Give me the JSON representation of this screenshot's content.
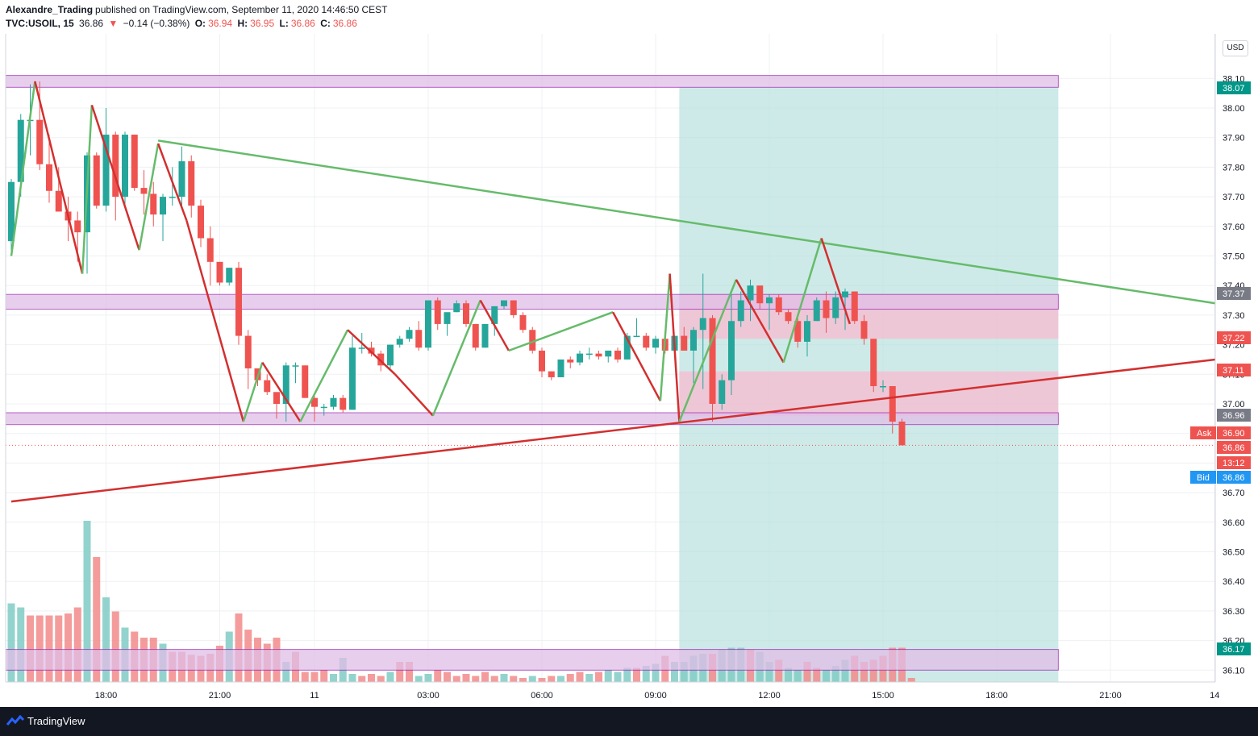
{
  "header": {
    "author": "Alexandre_Trading",
    "published_text": "published on TradingView.com, September 11, 2020 14:46:50 CEST",
    "symbol": "TVC:USOIL, 15",
    "last": "36.86",
    "change": "−0.14 (−0.38%)",
    "o_label": "O:",
    "o_value": "36.94",
    "h_label": "H:",
    "h_value": "36.95",
    "l_label": "L:",
    "l_value": "36.86",
    "c_label": "C:",
    "c_value": "36.86"
  },
  "currency": "USD",
  "footer": {
    "brand": "TradingView"
  },
  "colors": {
    "up": "#26a69a",
    "down": "#ef5350",
    "zone_fill": "#e1bee7",
    "zone_border": "#9c27b0",
    "target_fill": "#b2dfdb",
    "stop_fill": "#f8bbd0",
    "trend_green": "#66bb6a",
    "trend_red": "#d32f2f"
  },
  "chart_data": {
    "type": "candlestick",
    "interval": "15",
    "ylim": [
      36.0,
      38.25
    ],
    "y_ticks": [
      "38.10",
      "38.00",
      "37.90",
      "37.80",
      "37.70",
      "37.60",
      "37.50",
      "37.40",
      "37.30",
      "37.20",
      "37.10",
      "37.00",
      "36.90",
      "36.80",
      "36.70",
      "36.60",
      "36.50",
      "36.40",
      "36.30",
      "36.20",
      "36.10"
    ],
    "x_ticks": [
      {
        "label": "18:00",
        "t": 10
      },
      {
        "label": "21:00",
        "t": 22
      },
      {
        "label": "11",
        "t": 32
      },
      {
        "label": "03:00",
        "t": 44
      },
      {
        "label": "06:00",
        "t": 56
      },
      {
        "label": "09:00",
        "t": 68
      },
      {
        "label": "12:00",
        "t": 80
      },
      {
        "label": "15:00",
        "t": 92
      },
      {
        "label": "18:00",
        "t": 104
      },
      {
        "label": "21:00",
        "t": 116
      },
      {
        "label": "14",
        "t": 127
      }
    ],
    "candles": [
      [
        37.55,
        37.76,
        37.5,
        37.75
      ],
      [
        37.75,
        37.98,
        37.7,
        37.96
      ],
      [
        37.96,
        38.08,
        37.84,
        37.96
      ],
      [
        37.96,
        38.09,
        37.79,
        37.81
      ],
      [
        37.81,
        37.91,
        37.68,
        37.72
      ],
      [
        37.72,
        37.8,
        37.65,
        37.65
      ],
      [
        37.65,
        37.7,
        37.55,
        37.62
      ],
      [
        37.62,
        37.65,
        37.48,
        37.58
      ],
      [
        37.58,
        37.85,
        37.44,
        37.84
      ],
      [
        37.84,
        37.85,
        37.66,
        37.67
      ],
      [
        37.67,
        38.0,
        37.65,
        37.91
      ],
      [
        37.91,
        37.92,
        37.62,
        37.7
      ],
      [
        37.7,
        37.92,
        37.67,
        37.91
      ],
      [
        37.91,
        37.91,
        37.72,
        37.73
      ],
      [
        37.73,
        37.79,
        37.64,
        37.71
      ],
      [
        37.71,
        37.75,
        37.6,
        37.64
      ],
      [
        37.64,
        37.71,
        37.55,
        37.7
      ],
      [
        37.7,
        37.8,
        37.67,
        37.7
      ],
      [
        37.7,
        37.87,
        37.67,
        37.82
      ],
      [
        37.82,
        37.84,
        37.63,
        37.67
      ],
      [
        37.67,
        37.69,
        37.53,
        37.56
      ],
      [
        37.56,
        37.6,
        37.4,
        37.48
      ],
      [
        37.48,
        37.48,
        37.4,
        37.41
      ],
      [
        37.41,
        37.46,
        37.4,
        37.46
      ],
      [
        37.46,
        37.48,
        37.2,
        37.23
      ],
      [
        37.23,
        37.25,
        37.05,
        37.12
      ],
      [
        37.12,
        37.12,
        37.06,
        37.08
      ],
      [
        37.08,
        37.1,
        37.03,
        37.04
      ],
      [
        37.04,
        37.04,
        36.95,
        37.0
      ],
      [
        37.0,
        37.14,
        36.94,
        37.13
      ],
      [
        37.13,
        37.14,
        37.07,
        37.13
      ],
      [
        37.13,
        37.13,
        37.02,
        37.02
      ],
      [
        37.02,
        37.03,
        36.94,
        36.99
      ],
      [
        36.99,
        37.0,
        36.96,
        36.99
      ],
      [
        36.99,
        37.03,
        36.98,
        37.02
      ],
      [
        37.02,
        37.03,
        36.97,
        36.98
      ],
      [
        36.98,
        37.23,
        36.98,
        37.19
      ],
      [
        37.19,
        37.24,
        37.17,
        37.19
      ],
      [
        37.19,
        37.21,
        37.16,
        37.17
      ],
      [
        37.17,
        37.18,
        37.11,
        37.13
      ],
      [
        37.13,
        37.2,
        37.12,
        37.2
      ],
      [
        37.2,
        37.23,
        37.19,
        37.22
      ],
      [
        37.22,
        37.26,
        37.21,
        37.25
      ],
      [
        37.25,
        37.28,
        37.18,
        37.19
      ],
      [
        37.19,
        37.35,
        37.18,
        37.35
      ],
      [
        37.35,
        37.36,
        37.25,
        37.27
      ],
      [
        37.27,
        37.3,
        37.23,
        37.31
      ],
      [
        37.31,
        37.35,
        37.31,
        37.34
      ],
      [
        37.34,
        37.35,
        37.26,
        37.27
      ],
      [
        37.27,
        37.27,
        37.18,
        37.19
      ],
      [
        37.19,
        37.27,
        37.19,
        37.27
      ],
      [
        37.27,
        37.33,
        37.23,
        37.33
      ],
      [
        37.33,
        37.35,
        37.32,
        37.35
      ],
      [
        37.35,
        37.35,
        37.29,
        37.3
      ],
      [
        37.3,
        37.31,
        37.24,
        37.25
      ],
      [
        37.25,
        37.26,
        37.17,
        37.18
      ],
      [
        37.18,
        37.19,
        37.09,
        37.11
      ],
      [
        37.11,
        37.11,
        37.08,
        37.09
      ],
      [
        37.09,
        37.15,
        37.09,
        37.15
      ],
      [
        37.15,
        37.16,
        37.12,
        37.14
      ],
      [
        37.14,
        37.18,
        37.13,
        37.17
      ],
      [
        37.17,
        37.19,
        37.15,
        37.17
      ],
      [
        37.17,
        37.18,
        37.15,
        37.16
      ],
      [
        37.16,
        37.18,
        37.14,
        37.18
      ],
      [
        37.18,
        37.19,
        37.14,
        37.15
      ],
      [
        37.15,
        37.24,
        37.15,
        37.23
      ],
      [
        37.23,
        37.29,
        37.23,
        37.23
      ],
      [
        37.23,
        37.24,
        37.18,
        37.19
      ],
      [
        37.19,
        37.23,
        37.17,
        37.22
      ],
      [
        37.22,
        37.24,
        37.17,
        37.18
      ],
      [
        37.18,
        37.23,
        37.18,
        37.23
      ],
      [
        37.23,
        37.26,
        37.18,
        37.18
      ],
      [
        37.18,
        37.26,
        37.07,
        37.25
      ],
      [
        37.25,
        37.44,
        37.05,
        37.29
      ],
      [
        37.29,
        37.3,
        36.94,
        37.0
      ],
      [
        37.0,
        37.1,
        36.98,
        37.08
      ],
      [
        37.08,
        37.37,
        37.03,
        37.28
      ],
      [
        37.28,
        37.38,
        37.26,
        37.35
      ],
      [
        37.35,
        37.42,
        37.28,
        37.4
      ],
      [
        37.4,
        37.4,
        37.32,
        37.34
      ],
      [
        37.34,
        37.37,
        37.25,
        37.36
      ],
      [
        37.36,
        37.37,
        37.3,
        37.31
      ],
      [
        37.31,
        37.32,
        37.27,
        37.28
      ],
      [
        37.28,
        37.3,
        37.19,
        37.21
      ],
      [
        37.21,
        37.3,
        37.16,
        37.28
      ],
      [
        37.28,
        37.36,
        37.28,
        37.35
      ],
      [
        37.35,
        37.38,
        37.24,
        37.29
      ],
      [
        37.29,
        37.38,
        37.27,
        37.36
      ],
      [
        37.36,
        37.39,
        37.25,
        37.38
      ],
      [
        37.38,
        37.38,
        37.27,
        37.28
      ],
      [
        37.28,
        37.3,
        37.2,
        37.22
      ],
      [
        37.22,
        37.22,
        37.04,
        37.06
      ],
      [
        37.06,
        37.08,
        37.04,
        37.06
      ],
      [
        37.06,
        37.06,
        36.9,
        36.94
      ],
      [
        36.94,
        36.95,
        36.86,
        36.86
      ]
    ],
    "volume": [
      {
        "v": 0.78,
        "up": true
      },
      {
        "v": 0.74,
        "up": true
      },
      {
        "v": 0.66,
        "up": false
      },
      {
        "v": 0.66,
        "up": false
      },
      {
        "v": 0.66,
        "up": false
      },
      {
        "v": 0.66,
        "up": false
      },
      {
        "v": 0.68,
        "up": false
      },
      {
        "v": 0.74,
        "up": false
      },
      {
        "v": 1.6,
        "up": true
      },
      {
        "v": 1.24,
        "up": false
      },
      {
        "v": 0.84,
        "up": true
      },
      {
        "v": 0.7,
        "up": false
      },
      {
        "v": 0.54,
        "up": true
      },
      {
        "v": 0.5,
        "up": false
      },
      {
        "v": 0.44,
        "up": false
      },
      {
        "v": 0.44,
        "up": false
      },
      {
        "v": 0.38,
        "up": true
      },
      {
        "v": 0.3,
        "up": false
      },
      {
        "v": 0.3,
        "up": false
      },
      {
        "v": 0.27,
        "up": false
      },
      {
        "v": 0.26,
        "up": false
      },
      {
        "v": 0.28,
        "up": false
      },
      {
        "v": 0.36,
        "up": false
      },
      {
        "v": 0.5,
        "up": true
      },
      {
        "v": 0.68,
        "up": false
      },
      {
        "v": 0.52,
        "up": false
      },
      {
        "v": 0.44,
        "up": false
      },
      {
        "v": 0.38,
        "up": false
      },
      {
        "v": 0.44,
        "up": false
      },
      {
        "v": 0.2,
        "up": true
      },
      {
        "v": 0.3,
        "up": false
      },
      {
        "v": 0.1,
        "up": false
      },
      {
        "v": 0.1,
        "up": false
      },
      {
        "v": 0.12,
        "up": false
      },
      {
        "v": 0.08,
        "up": true
      },
      {
        "v": 0.24,
        "up": true
      },
      {
        "v": 0.08,
        "up": true
      },
      {
        "v": 0.06,
        "up": false
      },
      {
        "v": 0.08,
        "up": false
      },
      {
        "v": 0.06,
        "up": false
      },
      {
        "v": 0.1,
        "up": true
      },
      {
        "v": 0.2,
        "up": false
      },
      {
        "v": 0.2,
        "up": false
      },
      {
        "v": 0.06,
        "up": true
      },
      {
        "v": 0.08,
        "up": true
      },
      {
        "v": 0.12,
        "up": false
      },
      {
        "v": 0.1,
        "up": false
      },
      {
        "v": 0.06,
        "up": false
      },
      {
        "v": 0.08,
        "up": false
      },
      {
        "v": 0.06,
        "up": false
      },
      {
        "v": 0.1,
        "up": false
      },
      {
        "v": 0.06,
        "up": false
      },
      {
        "v": 0.08,
        "up": true
      },
      {
        "v": 0.06,
        "up": false
      },
      {
        "v": 0.04,
        "up": false
      },
      {
        "v": 0.06,
        "up": true
      },
      {
        "v": 0.04,
        "up": false
      },
      {
        "v": 0.06,
        "up": false
      },
      {
        "v": 0.06,
        "up": true
      },
      {
        "v": 0.08,
        "up": false
      },
      {
        "v": 0.1,
        "up": false
      },
      {
        "v": 0.08,
        "up": true
      },
      {
        "v": 0.1,
        "up": false
      },
      {
        "v": 0.12,
        "up": true
      },
      {
        "v": 0.1,
        "up": true
      },
      {
        "v": 0.14,
        "up": true
      },
      {
        "v": 0.14,
        "up": false
      },
      {
        "v": 0.16,
        "up": true
      },
      {
        "v": 0.18,
        "up": true
      },
      {
        "v": 0.26,
        "up": false
      },
      {
        "v": 0.2,
        "up": true
      },
      {
        "v": 0.2,
        "up": true
      },
      {
        "v": 0.26,
        "up": true
      },
      {
        "v": 0.28,
        "up": true
      },
      {
        "v": 0.28,
        "up": false
      },
      {
        "v": 0.32,
        "up": true
      },
      {
        "v": 0.34,
        "up": true
      },
      {
        "v": 0.34,
        "up": true
      },
      {
        "v": 0.32,
        "up": false
      },
      {
        "v": 0.3,
        "up": true
      },
      {
        "v": 0.2,
        "up": true
      },
      {
        "v": 0.22,
        "up": false
      },
      {
        "v": 0.14,
        "up": true
      },
      {
        "v": 0.12,
        "up": true
      },
      {
        "v": 0.2,
        "up": false
      },
      {
        "v": 0.14,
        "up": false
      },
      {
        "v": 0.12,
        "up": true
      },
      {
        "v": 0.16,
        "up": true
      },
      {
        "v": 0.22,
        "up": true
      },
      {
        "v": 0.26,
        "up": false
      },
      {
        "v": 0.2,
        "up": false
      },
      {
        "v": 0.22,
        "up": false
      },
      {
        "v": 0.26,
        "up": false
      },
      {
        "v": 0.34,
        "up": false
      },
      {
        "v": 0.34,
        "up": false
      },
      {
        "v": 0.04,
        "up": false
      }
    ],
    "zones": [
      {
        "name": "resistance-zone",
        "low": 38.07,
        "high": 38.11
      },
      {
        "name": "mid-zone",
        "low": 37.32,
        "high": 37.37
      },
      {
        "name": "support-zone",
        "low": 36.93,
        "high": 36.97
      },
      {
        "name": "bottom-zone",
        "low": 36.1,
        "high": 36.17
      }
    ],
    "position": {
      "t_start": 70.5,
      "t_end": 110.5,
      "entry": 37.22,
      "entry_upper": 37.11,
      "target": 38.07,
      "stop": 37.37
    },
    "trendlines": [
      {
        "name": "descending-trendline",
        "color": "#66bb6a",
        "points": [
          [
            15.5,
            37.89
          ],
          [
            128,
            37.34
          ]
        ]
      },
      {
        "name": "ascending-trendline",
        "color": "#d32f2f",
        "points": [
          [
            0,
            36.67
          ],
          [
            128,
            37.15
          ]
        ]
      }
    ],
    "zigzag": [
      {
        "t": 0,
        "p": 37.5
      },
      {
        "t": 2.5,
        "p": 38.09
      },
      {
        "t": 7.5,
        "p": 37.44
      },
      {
        "t": 8.5,
        "p": 38.01
      },
      {
        "t": 13.5,
        "p": 37.52
      },
      {
        "t": 15.5,
        "p": 37.88
      },
      {
        "t": 18.5,
        "p": 37.62
      },
      {
        "t": 24.5,
        "p": 36.94
      },
      {
        "t": 26.5,
        "p": 37.14
      },
      {
        "t": 30.5,
        "p": 36.94
      },
      {
        "t": 35.5,
        "p": 37.25
      },
      {
        "t": 40.5,
        "p": 37.1
      },
      {
        "t": 44.5,
        "p": 36.96
      },
      {
        "t": 49.5,
        "p": 37.35
      },
      {
        "t": 52.5,
        "p": 37.18
      },
      {
        "t": 63.5,
        "p": 37.31
      },
      {
        "t": 68.5,
        "p": 37.01
      },
      {
        "t": 69.5,
        "p": 37.44
      },
      {
        "t": 70.5,
        "p": 36.94
      },
      {
        "t": 76.5,
        "p": 37.42
      },
      {
        "t": 81.5,
        "p": 37.14
      },
      {
        "t": 85.5,
        "p": 37.56
      },
      {
        "t": 88.5,
        "p": 37.27
      }
    ],
    "labels": {
      "ask": "Ask",
      "bid": "Bid",
      "countdown": "13:12"
    },
    "price_badges": [
      {
        "value": "38.07",
        "kind": "green"
      },
      {
        "value": "37.37",
        "kind": "grey"
      },
      {
        "value": "37.22",
        "kind": "red"
      },
      {
        "value": "37.11",
        "kind": "red"
      },
      {
        "value": "36.96",
        "kind": "grey"
      },
      {
        "value": "36.90",
        "kind": "red"
      },
      {
        "value": "36.86",
        "kind": "red"
      },
      {
        "value": "36.86",
        "kind": "blue"
      },
      {
        "value": "36.17",
        "kind": "green"
      }
    ]
  }
}
